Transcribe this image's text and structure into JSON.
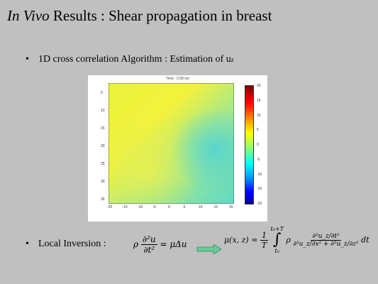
{
  "slide": {
    "title_italic": "In Vivo",
    "title_rest": " Results : Shear propagation in breast",
    "bullet1_text": "1D cross correlation Algorithm : Estimation of u",
    "bullet1_sub": "z",
    "bullet2_text": "Local Inversion :",
    "bullet_glyph": "•"
  },
  "plot": {
    "title": "Time : 0.08 ms",
    "y_ticks": [
      "5",
      "10",
      "15",
      "20",
      "25",
      "30",
      "35"
    ],
    "x_ticks": [
      "-20",
      "-15",
      "-10",
      "-5",
      "0",
      "5",
      "10",
      "15",
      "20"
    ],
    "colorbar_ticks": [
      "20",
      "15",
      "10",
      "5",
      "0",
      "-5",
      "-10",
      "-15",
      "-20"
    ]
  },
  "formulas": {
    "left_lhs_num": "∂²u",
    "left_lhs_den": "∂t²",
    "left_rho": "ρ",
    "left_rhs": "= μΔu",
    "right_lhs": "μ(x, z) =",
    "right_one": "1",
    "right_T": "T",
    "int_upper": "t₀+T",
    "int_lower": "t₀",
    "right_num": "∂²u_z/∂t²",
    "right_den": "∂²u_z/∂x² + ∂²u_z/∂z²",
    "right_dt": "dt"
  },
  "colors": {
    "background": "#c0c0c0",
    "arrow": "#66cc99"
  }
}
